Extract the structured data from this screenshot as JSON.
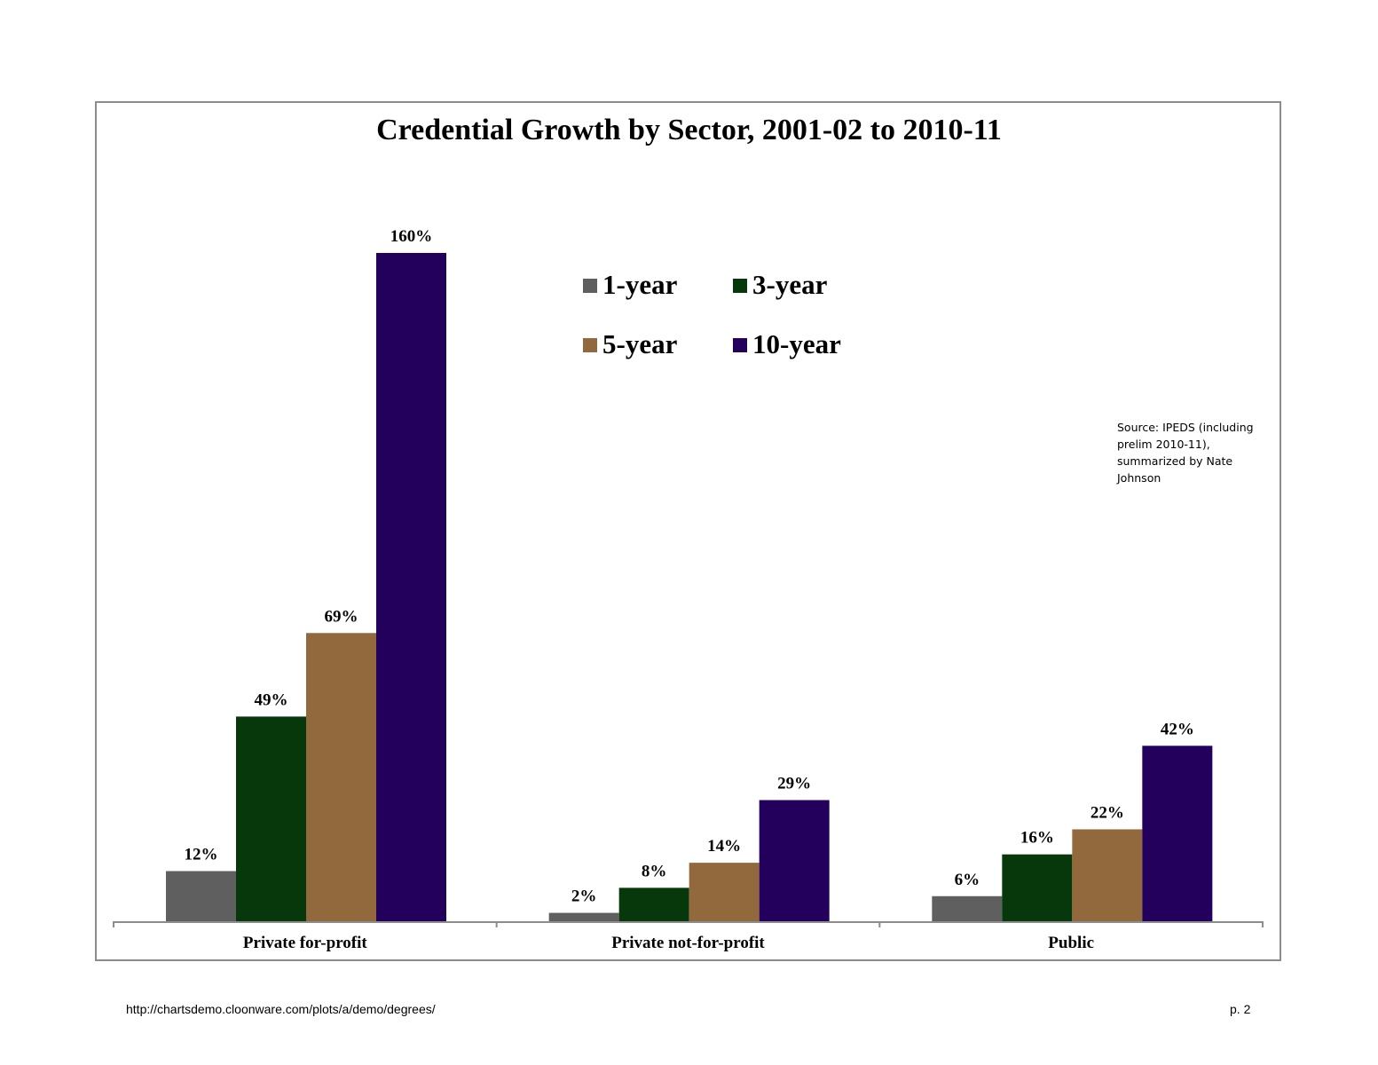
{
  "chart_data": {
    "type": "bar",
    "title": "Credential Growth by Sector, 2001-02 to 2010-11",
    "categories": [
      "Private for-profit",
      "Private not-for-profit",
      "Public"
    ],
    "series": [
      {
        "name": "1-year",
        "color": "#5f5f5f",
        "values": [
          12,
          2,
          6
        ],
        "labels": [
          "12%",
          "2%",
          "6%"
        ]
      },
      {
        "name": "3-year",
        "color": "#06380b",
        "values": [
          49,
          8,
          16
        ],
        "labels": [
          "49%",
          "8%",
          "16%"
        ]
      },
      {
        "name": "5-year",
        "color": "#91693c",
        "values": [
          69,
          14,
          22
        ],
        "labels": [
          "69%",
          "14%",
          "22%"
        ]
      },
      {
        "name": "10-year",
        "color": "#22005c",
        "values": [
          160,
          29,
          42
        ],
        "labels": [
          "160%",
          "29%",
          "42%"
        ]
      }
    ],
    "ylim": [
      0,
      160
    ],
    "legend_position": "top-center",
    "grid": false,
    "annotation": "Source: IPEDS (including prelim 2010-11), summarized by Nate Johnson"
  },
  "footer": {
    "url": "http://chartsdemo.cloonware.com/plots/a/demo/degrees/",
    "page": "p. 2"
  }
}
